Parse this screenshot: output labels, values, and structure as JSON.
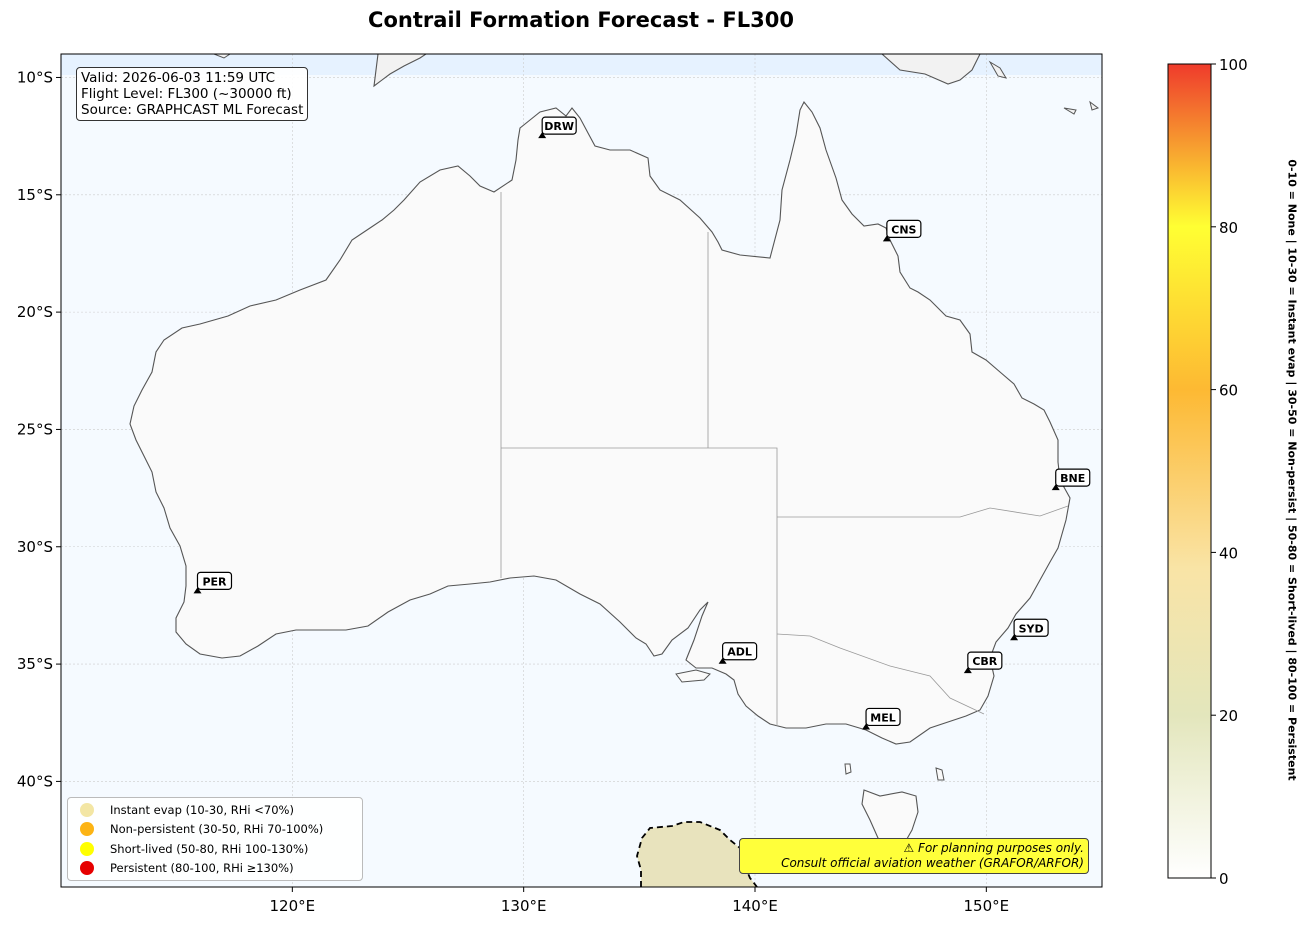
{
  "title": "Contrail Formation Forecast - FL300",
  "info": {
    "valid": "Valid: 2026-06-03 11:59 UTC",
    "flight_level": "Flight Level: FL300 (~30000 ft)",
    "source": "Source: GRAPHCAST ML Forecast"
  },
  "axes": {
    "x_ticks": [
      "120°E",
      "130°E",
      "140°E",
      "150°E"
    ],
    "y_ticks": [
      "10°S",
      "15°S",
      "20°S",
      "25°S",
      "30°S",
      "35°S",
      "40°S"
    ],
    "lon_range": [
      110,
      155
    ],
    "lat_range": [
      -9,
      -44.5
    ]
  },
  "airports": [
    {
      "code": "DRW",
      "lon": 130.8,
      "lat": -12.5
    },
    {
      "code": "CNS",
      "lon": 145.7,
      "lat": -16.9
    },
    {
      "code": "BNE",
      "lon": 153.0,
      "lat": -27.5
    },
    {
      "code": "PER",
      "lon": 115.9,
      "lat": -31.9
    },
    {
      "code": "ADL",
      "lon": 138.6,
      "lat": -34.9
    },
    {
      "code": "SYD",
      "lon": 151.2,
      "lat": -33.9
    },
    {
      "code": "CBR",
      "lon": 149.2,
      "lat": -35.3
    },
    {
      "code": "MEL",
      "lon": 144.8,
      "lat": -37.7
    }
  ],
  "legend": [
    {
      "label": "Instant evap (10-30, RHi <70%)",
      "color": "#f3e6a4"
    },
    {
      "label": "Non-persistent (30-50, RHi 70-100%)",
      "color": "#fcb414"
    },
    {
      "label": "Short-lived (50-80, RHi 100-130%)",
      "color": "#ffff00"
    },
    {
      "label": "Persistent (80-100, RHi ≥130%)",
      "color": "#e60000"
    }
  ],
  "warning": {
    "line1": "⚠ For planning purposes only.",
    "line2": "Consult official aviation weather (GRAFOR/ARFOR)"
  },
  "colorbar": {
    "ticks": [
      "0",
      "20",
      "40",
      "60",
      "80",
      "100"
    ],
    "range": [
      0,
      100
    ],
    "side_label": "0-10 = None  |  10-30 = Instant evap  |  30-50 = Non-persist  |  50-80 = Short-lived  |  80-100 = Persistent"
  },
  "colors": {
    "ocean": "#f5faff",
    "land": "#fafafa",
    "coast": "#555555",
    "instant_patch": "#e8e3bd"
  }
}
